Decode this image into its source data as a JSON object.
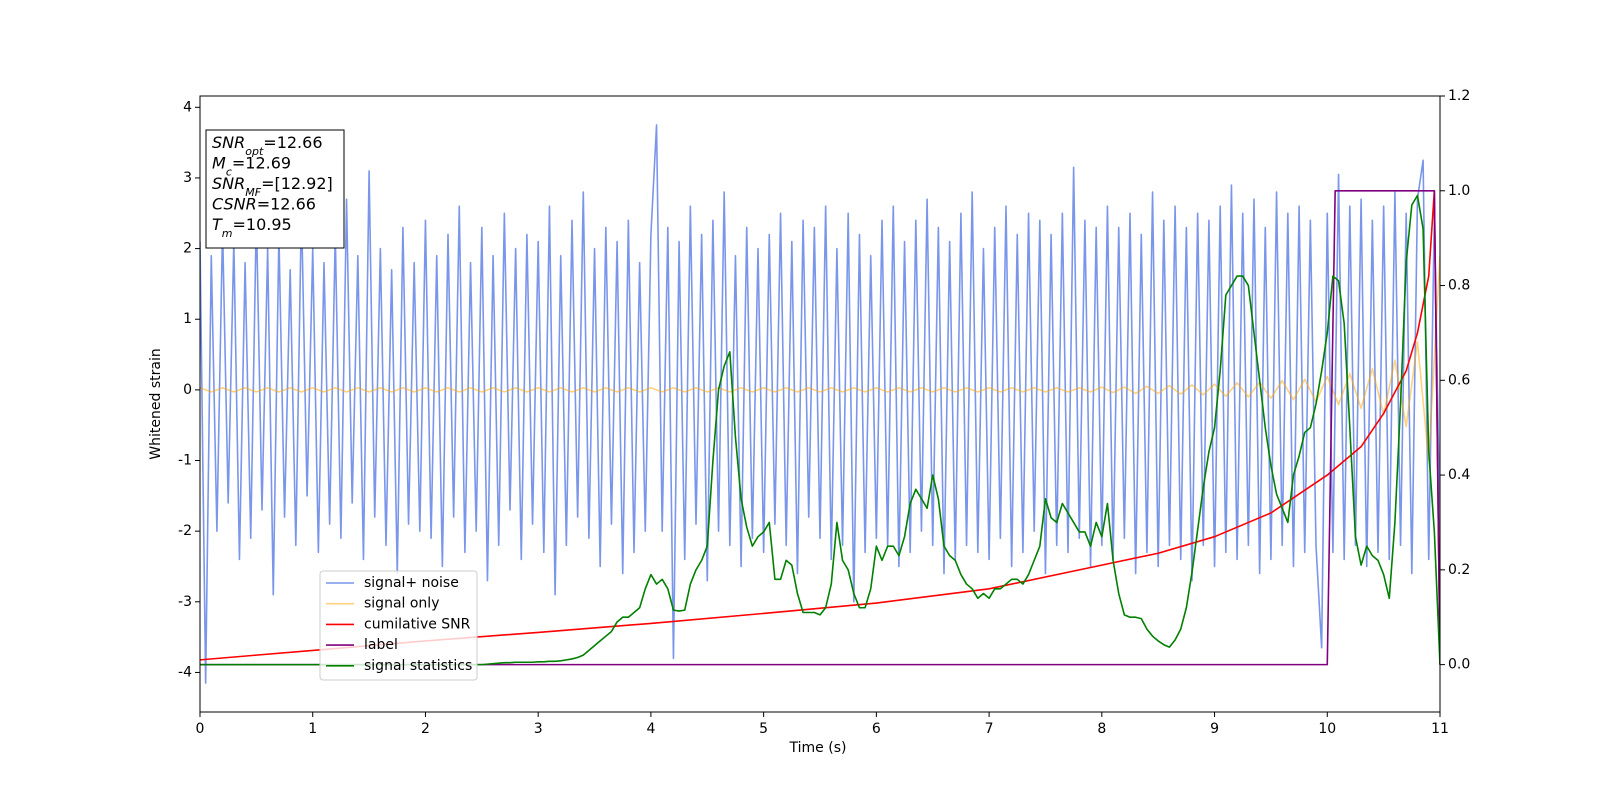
{
  "chart_data": {
    "type": "line",
    "x_label": "Time (s)",
    "y_label": "Whitened strain",
    "xlim": [
      0,
      11
    ],
    "ylim": [
      -4.56,
      4.16
    ],
    "y2lim": [
      -0.1,
      1.2
    ],
    "xticks": [
      0,
      1,
      2,
      3,
      4,
      5,
      6,
      7,
      8,
      9,
      10,
      11
    ],
    "yticks": [
      -4,
      -3,
      -2,
      -1,
      0,
      1,
      2,
      3,
      4
    ],
    "y2ticks": [
      {
        "value": 0,
        "label": "0.0"
      },
      0.2,
      0.4,
      0.6,
      0.8,
      {
        "value": 1,
        "label": "1.0"
      },
      1.2
    ],
    "legend": "lower left",
    "annotations": [
      {
        "name": "SNR",
        "sub": "opt",
        "text": "=12.66"
      },
      {
        "name": "M",
        "sub": "c",
        "text": "=12.69"
      },
      {
        "name": "SNR",
        "sub": "MF",
        "text": "=[12.92]"
      },
      {
        "name": "CSNR",
        "text": "=12.66"
      },
      {
        "name": "T",
        "sub": "m",
        "text": "=10.95"
      }
    ],
    "x": [
      0,
      0.05,
      0.1,
      0.15,
      0.2,
      0.25,
      0.3,
      0.35,
      0.4,
      0.45,
      0.5,
      0.55,
      0.6,
      0.65,
      0.7,
      0.75,
      0.8,
      0.85,
      0.9,
      0.95,
      1,
      1.05,
      1.1,
      1.15,
      1.2,
      1.25,
      1.3,
      1.35,
      1.4,
      1.45,
      1.5,
      1.55,
      1.6,
      1.65,
      1.7,
      1.75,
      1.8,
      1.85,
      1.9,
      1.95,
      2,
      2.05,
      2.1,
      2.15,
      2.2,
      2.25,
      2.3,
      2.35,
      2.4,
      2.45,
      2.5,
      2.55,
      2.6,
      2.65,
      2.7,
      2.75,
      2.8,
      2.85,
      2.9,
      2.95,
      3,
      3.05,
      3.1,
      3.15,
      3.2,
      3.25,
      3.3,
      3.35,
      3.4,
      3.45,
      3.5,
      3.55,
      3.6,
      3.65,
      3.7,
      3.75,
      3.8,
      3.85,
      3.9,
      3.95,
      4,
      4.05,
      4.1,
      4.15,
      4.2,
      4.25,
      4.3,
      4.35,
      4.4,
      4.45,
      4.5,
      4.55,
      4.6,
      4.65,
      4.7,
      4.75,
      4.8,
      4.85,
      4.9,
      4.95,
      5,
      5.05,
      5.1,
      5.15,
      5.2,
      5.25,
      5.3,
      5.35,
      5.4,
      5.45,
      5.5,
      5.55,
      5.6,
      5.65,
      5.7,
      5.75,
      5.8,
      5.85,
      5.9,
      5.95,
      6,
      6.05,
      6.1,
      6.15,
      6.2,
      6.25,
      6.3,
      6.35,
      6.4,
      6.45,
      6.5,
      6.55,
      6.6,
      6.65,
      6.7,
      6.75,
      6.8,
      6.85,
      6.9,
      6.95,
      7,
      7.05,
      7.1,
      7.15,
      7.2,
      7.25,
      7.3,
      7.35,
      7.4,
      7.45,
      7.5,
      7.55,
      7.6,
      7.65,
      7.7,
      7.75,
      7.8,
      7.85,
      7.9,
      7.95,
      8,
      8.05,
      8.1,
      8.15,
      8.2,
      8.25,
      8.3,
      8.35,
      8.4,
      8.45,
      8.5,
      8.55,
      8.6,
      8.65,
      8.7,
      8.75,
      8.8,
      8.85,
      8.9,
      8.95,
      9,
      9.05,
      9.1,
      9.15,
      9.2,
      9.25,
      9.3,
      9.35,
      9.4,
      9.45,
      9.5,
      9.55,
      9.6,
      9.65,
      9.7,
      9.75,
      9.8,
      9.85,
      9.9,
      9.95,
      10,
      10.05,
      10.1,
      10.15,
      10.2,
      10.25,
      10.3,
      10.35,
      10.4,
      10.45,
      10.5,
      10.55,
      10.6,
      10.65,
      10.7,
      10.75,
      10.8,
      10.85,
      10.9,
      10.95,
      11
    ],
    "series": [
      {
        "name": "signal+ noise",
        "color": "#4169e1",
        "opacity": 0.7,
        "values": [
          2.1,
          -4.15,
          1.9,
          -2.0,
          2.3,
          -1.6,
          2.1,
          -2.4,
          1.8,
          -2.1,
          2.5,
          -1.7,
          2.0,
          -2.9,
          2.2,
          -1.8,
          1.7,
          -2.2,
          2.6,
          -1.5,
          2.0,
          -2.3,
          1.8,
          -1.9,
          2.2,
          -2.1,
          2.7,
          -1.6,
          1.9,
          -2.4,
          3.1,
          -1.8,
          2.0,
          -2.2,
          1.7,
          -2.6,
          2.3,
          -1.9,
          1.8,
          -2.0,
          2.4,
          -2.1,
          1.9,
          -2.5,
          2.2,
          -1.8,
          2.6,
          -2.3,
          1.8,
          -2.0,
          2.3,
          -2.7,
          1.9,
          -2.2,
          2.5,
          -1.7,
          2.0,
          -2.4,
          2.2,
          -1.9,
          2.1,
          -2.3,
          2.6,
          -2.9,
          1.9,
          -2.2,
          2.4,
          -1.8,
          2.8,
          -2.1,
          2.0,
          -2.5,
          2.3,
          -1.9,
          2.1,
          -2.6,
          2.4,
          -2.3,
          1.8,
          -2.0,
          2.2,
          3.75,
          -2.0,
          2.3,
          -3.8,
          2.1,
          -2.4,
          2.6,
          -1.9,
          2.2,
          -2.7,
          2.4,
          -2.0,
          2.8,
          -2.2,
          1.9,
          -2.5,
          2.3,
          -2.1,
          2.0,
          -2.3,
          2.2,
          -1.9,
          2.5,
          -2.2,
          2.1,
          -2.6,
          2.4,
          -1.8,
          2.3,
          -2.1,
          2.6,
          -2.4,
          2.0,
          -2.2,
          2.5,
          -3.0,
          2.2,
          -2.3,
          1.9,
          -2.1,
          2.4,
          -2.2,
          2.6,
          -2.5,
          2.1,
          -2.3,
          2.4,
          -2.0,
          2.7,
          -2.2,
          2.3,
          -2.6,
          2.1,
          -2.4,
          2.5,
          -2.2,
          2.8,
          -2.3,
          2.0,
          -2.4,
          2.3,
          -2.1,
          2.6,
          -2.5,
          2.2,
          -2.3,
          2.5,
          -2.0,
          2.4,
          -2.6,
          2.2,
          -2.2,
          2.5,
          -2.3,
          3.15,
          -2.1,
          2.4,
          -2.5,
          2.3,
          -2.2,
          2.6,
          -2.4,
          2.3,
          -2.1,
          2.5,
          -2.6,
          2.2,
          -2.3,
          2.8,
          -2.5,
          2.4,
          -2.2,
          2.6,
          -2.4,
          2.3,
          -2.7,
          2.5,
          -2.2,
          2.4,
          -2.5,
          2.6,
          -2.3,
          2.9,
          -2.4,
          2.5,
          -2.2,
          2.7,
          -2.6,
          2.3,
          -2.4,
          2.8,
          -2.2,
          2.5,
          -2.5,
          2.6,
          -2.3,
          2.4,
          -2.2,
          -3.65,
          2.5,
          -2.3,
          3.05,
          -2.4,
          2.6,
          -2.2,
          2.7,
          -2.5,
          2.4,
          -2.3,
          2.6,
          -2.4,
          2.8,
          -2.2,
          2.5,
          -2.6,
          2.7,
          3.25,
          -2.4,
          2.5,
          -2.0
        ]
      },
      {
        "name": "signal only",
        "color": "#ffa500",
        "opacity": 0.5,
        "x": [
          0,
          0.1,
          0.2,
          0.3,
          0.4,
          0.5,
          0.6,
          0.7,
          0.8,
          0.9,
          1,
          1.1,
          1.2,
          1.3,
          1.4,
          1.5,
          1.6,
          1.7,
          1.8,
          1.9,
          2,
          2.1,
          2.2,
          2.3,
          2.4,
          2.5,
          2.6,
          2.7,
          2.8,
          2.9,
          3,
          3.1,
          3.2,
          3.3,
          3.4,
          3.5,
          3.6,
          3.7,
          3.8,
          3.9,
          4,
          4.1,
          4.2,
          4.3,
          4.4,
          4.5,
          4.6,
          4.7,
          4.8,
          4.9,
          5,
          5.1,
          5.2,
          5.3,
          5.4,
          5.5,
          5.6,
          5.7,
          5.8,
          5.9,
          6,
          6.1,
          6.2,
          6.3,
          6.4,
          6.5,
          6.6,
          6.7,
          6.8,
          6.9,
          7,
          7.1,
          7.2,
          7.3,
          7.4,
          7.5,
          7.6,
          7.7,
          7.8,
          7.9,
          8,
          8.1,
          8.2,
          8.3,
          8.4,
          8.5,
          8.6,
          8.7,
          8.8,
          8.9,
          9,
          9.1,
          9.2,
          9.3,
          9.4,
          9.5,
          9.6,
          9.7,
          9.8,
          9.9,
          10,
          10.1,
          10.2,
          10.3,
          10.4,
          10.5,
          10.6,
          10.7,
          10.8,
          10.9,
          11
        ],
        "values": [
          0.03,
          -0.03,
          0.03,
          -0.03,
          0.03,
          -0.03,
          0.03,
          -0.03,
          0.03,
          -0.03,
          0.03,
          -0.03,
          0.03,
          -0.03,
          0.03,
          -0.03,
          0.03,
          -0.03,
          0.03,
          -0.03,
          0.03,
          -0.03,
          0.03,
          -0.03,
          0.03,
          -0.03,
          0.03,
          -0.03,
          0.03,
          -0.03,
          0.03,
          -0.03,
          0.03,
          -0.03,
          0.03,
          -0.03,
          0.03,
          -0.03,
          0.03,
          -0.03,
          0.03,
          -0.03,
          0.03,
          -0.03,
          0.03,
          -0.03,
          0.03,
          -0.03,
          0.03,
          -0.03,
          0.03,
          -0.03,
          0.03,
          -0.03,
          0.03,
          -0.03,
          0.03,
          -0.03,
          0.03,
          -0.03,
          0.03,
          -0.03,
          0.03,
          -0.03,
          0.03,
          -0.03,
          0.03,
          -0.03,
          0.03,
          -0.03,
          0.03,
          -0.03,
          0.03,
          -0.03,
          0.03,
          -0.03,
          0.03,
          -0.03,
          0.03,
          -0.03,
          0.04,
          -0.04,
          0.04,
          -0.05,
          0.05,
          -0.05,
          0.06,
          -0.06,
          0.07,
          -0.07,
          0.08,
          -0.09,
          0.1,
          -0.1,
          0.11,
          -0.12,
          0.13,
          -0.14,
          0.15,
          -0.17,
          0.19,
          -0.21,
          0.23,
          -0.26,
          0.3,
          -0.35,
          0.42,
          -0.52,
          0.68,
          -1.0,
          1.9
        ]
      },
      {
        "name": "cumilative SNR",
        "color": "#ff0000",
        "axis": "y2",
        "x": [
          0,
          0.5,
          1,
          1.5,
          2,
          3,
          4,
          5,
          6,
          7,
          8,
          8.5,
          9,
          9.5,
          10,
          10.3,
          10.5,
          10.7,
          10.8,
          10.9,
          10.95,
          11
        ],
        "values": [
          0.01,
          0.02,
          0.03,
          0.04,
          0.05,
          0.068,
          0.087,
          0.108,
          0.13,
          0.16,
          0.21,
          0.235,
          0.27,
          0.32,
          0.4,
          0.46,
          0.53,
          0.62,
          0.7,
          0.82,
          1.0,
          0
        ]
      },
      {
        "name": "label",
        "color": "#800080",
        "axis": "y2",
        "x": [
          0,
          10,
          10.07,
          10.95,
          11
        ],
        "values": [
          0,
          0,
          1,
          1,
          0
        ]
      },
      {
        "name": "signal statistics",
        "color": "#008000",
        "axis": "y2",
        "values": [
          0,
          0,
          0,
          0,
          0,
          0,
          0,
          0,
          0,
          0,
          0,
          0,
          0,
          0,
          0,
          0,
          0,
          0,
          0,
          0,
          0,
          0,
          0,
          0,
          0,
          0,
          0,
          0,
          0,
          0,
          0,
          0,
          0,
          0,
          0,
          0,
          0,
          0,
          0,
          0,
          0,
          0,
          0,
          0,
          0,
          0,
          0,
          0,
          0,
          0,
          0,
          0.001,
          0.002,
          0.003,
          0.004,
          0.004,
          0.005,
          0.005,
          0.005,
          0.005,
          0.006,
          0.006,
          0.007,
          0.007,
          0.008,
          0.01,
          0.012,
          0.015,
          0.02,
          0.03,
          0.04,
          0.05,
          0.06,
          0.07,
          0.09,
          0.1,
          0.1,
          0.11,
          0.12,
          0.16,
          0.19,
          0.17,
          0.18,
          0.16,
          0.115,
          0.113,
          0.115,
          0.17,
          0.2,
          0.22,
          0.25,
          0.43,
          0.58,
          0.63,
          0.66,
          0.48,
          0.35,
          0.29,
          0.25,
          0.27,
          0.28,
          0.3,
          0.18,
          0.18,
          0.22,
          0.21,
          0.15,
          0.11,
          0.11,
          0.11,
          0.105,
          0.12,
          0.17,
          0.3,
          0.22,
          0.2,
          0.15,
          0.12,
          0.12,
          0.16,
          0.25,
          0.22,
          0.25,
          0.25,
          0.23,
          0.27,
          0.34,
          0.37,
          0.35,
          0.33,
          0.4,
          0.35,
          0.25,
          0.23,
          0.22,
          0.19,
          0.17,
          0.16,
          0.14,
          0.15,
          0.14,
          0.16,
          0.16,
          0.17,
          0.18,
          0.18,
          0.17,
          0.19,
          0.22,
          0.25,
          0.35,
          0.31,
          0.3,
          0.34,
          0.32,
          0.3,
          0.28,
          0.28,
          0.25,
          0.3,
          0.27,
          0.34,
          0.22,
          0.15,
          0.105,
          0.1,
          0.1,
          0.097,
          0.075,
          0.06,
          0.05,
          0.042,
          0.037,
          0.052,
          0.075,
          0.12,
          0.195,
          0.284,
          0.374,
          0.449,
          0.5,
          0.62,
          0.78,
          0.8,
          0.82,
          0.82,
          0.8,
          0.7,
          0.6,
          0.5,
          0.42,
          0.36,
          0.33,
          0.3,
          0.4,
          0.44,
          0.49,
          0.5,
          0.55,
          0.62,
          0.7,
          0.82,
          0.81,
          0.72,
          0.5,
          0.27,
          0.21,
          0.25,
          0.23,
          0.22,
          0.19,
          0.14,
          0.3,
          0.55,
          0.85,
          0.97,
          0.99,
          0.92,
          0.45,
          0.28,
          0
        ]
      }
    ]
  }
}
